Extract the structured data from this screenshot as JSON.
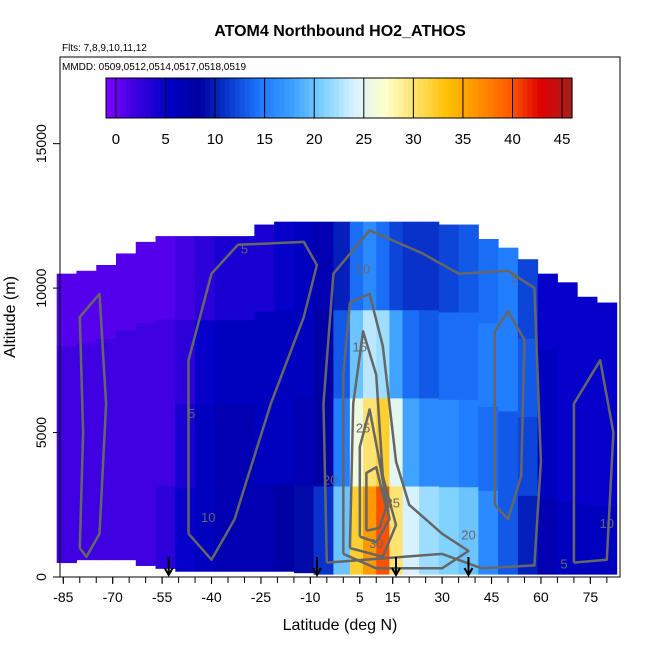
{
  "chart_data": {
    "type": "heatmap",
    "title": "ATOM4 Northbound HO2_ATHOS",
    "flights_note": "Flts: 7,8,9,10,11,12",
    "dates_note": "MMDD: 0509,0512,0514,0517,0518,0519",
    "xlabel": "Latitude (deg N)",
    "ylabel": "Altitude (m)",
    "xlim": [
      -86,
      84
    ],
    "ylim": [
      0,
      18000
    ],
    "x_ticks": [
      -85,
      -70,
      -55,
      -40,
      -25,
      -10,
      5,
      15,
      30,
      45,
      60,
      75
    ],
    "y_ticks": [
      0,
      5000,
      10000,
      15000
    ],
    "colorbar": {
      "min": -1,
      "max": 46,
      "ticks": [
        0,
        5,
        10,
        15,
        20,
        25,
        30,
        35,
        40,
        45
      ],
      "colors": [
        "#7f00ff",
        "#3b00e0",
        "#0000c8",
        "#0000a0",
        "#0a3cd2",
        "#1e7aff",
        "#3ca0ff",
        "#7fd2ff",
        "#d8f2ff",
        "#ffffcc",
        "#ffe066",
        "#ffc000",
        "#ff9000",
        "#ff5a00",
        "#e00000",
        "#a51f1f"
      ]
    },
    "arrow_latitudes": [
      -53,
      -8,
      16,
      38
    ],
    "contour_levels": [
      5,
      10,
      15,
      20,
      25,
      30,
      35
    ],
    "contour_labels": [
      {
        "text": "5",
        "lat": -30,
        "alt": 11200
      },
      {
        "text": "5",
        "lat": 52,
        "alt": 10200
      },
      {
        "text": "5",
        "lat": -46,
        "alt": 5500
      },
      {
        "text": "5",
        "lat": 67,
        "alt": 300
      },
      {
        "text": "10",
        "lat": 6,
        "alt": 10500
      },
      {
        "text": "10",
        "lat": -41,
        "alt": 1900
      },
      {
        "text": "10",
        "lat": 80,
        "alt": 1700
      },
      {
        "text": "15",
        "lat": 5,
        "alt": 7800
      },
      {
        "text": "20",
        "lat": -4,
        "alt": 3200
      },
      {
        "text": "20",
        "lat": 38,
        "alt": 1300
      },
      {
        "text": "25",
        "lat": 6,
        "alt": 5000
      },
      {
        "text": "30",
        "lat": 10,
        "alt": 1000
      },
      {
        "text": "35",
        "lat": 15,
        "alt": 2400
      }
    ],
    "columns": [
      {
        "lat": -84,
        "bottom": 500,
        "top": 10500,
        "values": [
          2,
          2,
          2,
          1
        ]
      },
      {
        "lat": -78,
        "bottom": 600,
        "top": 10600,
        "values": [
          2,
          2,
          2,
          1
        ]
      },
      {
        "lat": -72,
        "bottom": 600,
        "top": 10800,
        "values": [
          2,
          2,
          2,
          1
        ]
      },
      {
        "lat": -66,
        "bottom": 600,
        "top": 11200,
        "values": [
          2,
          2,
          2,
          1
        ]
      },
      {
        "lat": -60,
        "bottom": 400,
        "top": 11600,
        "values": [
          2,
          2,
          2,
          1
        ]
      },
      {
        "lat": -54,
        "bottom": 300,
        "top": 11800,
        "values": [
          3,
          2,
          2,
          1
        ]
      },
      {
        "lat": -48,
        "bottom": 200,
        "top": 11800,
        "values": [
          5,
          4,
          3,
          2
        ]
      },
      {
        "lat": -42,
        "bottom": 200,
        "top": 11800,
        "values": [
          6,
          6,
          5,
          3
        ]
      },
      {
        "lat": -36,
        "bottom": 200,
        "top": 11800,
        "values": [
          7,
          7,
          6,
          4
        ]
      },
      {
        "lat": -30,
        "bottom": 200,
        "top": 11800,
        "values": [
          7,
          7,
          6,
          4
        ]
      },
      {
        "lat": -24,
        "bottom": 200,
        "top": 12200,
        "values": [
          7,
          6,
          6,
          4
        ]
      },
      {
        "lat": -18,
        "bottom": 200,
        "top": 12300,
        "values": [
          8,
          6,
          6,
          5
        ]
      },
      {
        "lat": -12,
        "bottom": 150,
        "top": 12300,
        "values": [
          9,
          7,
          6,
          6
        ]
      },
      {
        "lat": -6,
        "bottom": 100,
        "top": 12300,
        "values": [
          11,
          8,
          8,
          7
        ]
      },
      {
        "lat": 0,
        "bottom": 100,
        "top": 12300,
        "values": [
          20,
          15,
          13,
          10
        ]
      },
      {
        "lat": 4,
        "bottom": 100,
        "top": 12300,
        "values": [
          32,
          26,
          20,
          14
        ]
      },
      {
        "lat": 8,
        "bottom": 100,
        "top": 12300,
        "values": [
          36,
          30,
          23,
          16
        ]
      },
      {
        "lat": 12,
        "bottom": 100,
        "top": 12300,
        "values": [
          40,
          32,
          22,
          14
        ]
      },
      {
        "lat": 16,
        "bottom": 100,
        "top": 12300,
        "values": [
          30,
          25,
          18,
          12
        ]
      },
      {
        "lat": 20,
        "bottom": 100,
        "top": 12300,
        "values": [
          24,
          18,
          14,
          11
        ]
      },
      {
        "lat": 26,
        "bottom": 100,
        "top": 12300,
        "values": [
          22,
          16,
          13,
          11
        ]
      },
      {
        "lat": 32,
        "bottom": 100,
        "top": 12200,
        "values": [
          21,
          16,
          14,
          12
        ]
      },
      {
        "lat": 38,
        "bottom": 100,
        "top": 12200,
        "values": [
          20,
          15,
          14,
          13
        ]
      },
      {
        "lat": 44,
        "bottom": 100,
        "top": 11700,
        "values": [
          16,
          14,
          15,
          14
        ]
      },
      {
        "lat": 50,
        "bottom": 100,
        "top": 11400,
        "values": [
          13,
          13,
          15,
          15
        ]
      },
      {
        "lat": 56,
        "bottom": 100,
        "top": 11000,
        "values": [
          10,
          12,
          13,
          12
        ]
      },
      {
        "lat": 62,
        "bottom": 100,
        "top": 10500,
        "values": [
          7,
          6,
          6,
          5
        ]
      },
      {
        "lat": 68,
        "bottom": 100,
        "top": 10200,
        "values": [
          6,
          5,
          5,
          5
        ]
      },
      {
        "lat": 74,
        "bottom": 100,
        "top": 9700,
        "values": [
          6,
          5,
          5,
          5
        ]
      },
      {
        "lat": 80,
        "bottom": 100,
        "top": 9500,
        "values": [
          6,
          5,
          5,
          5
        ]
      }
    ],
    "grid": false,
    "legend": "colorbar top-inside"
  }
}
